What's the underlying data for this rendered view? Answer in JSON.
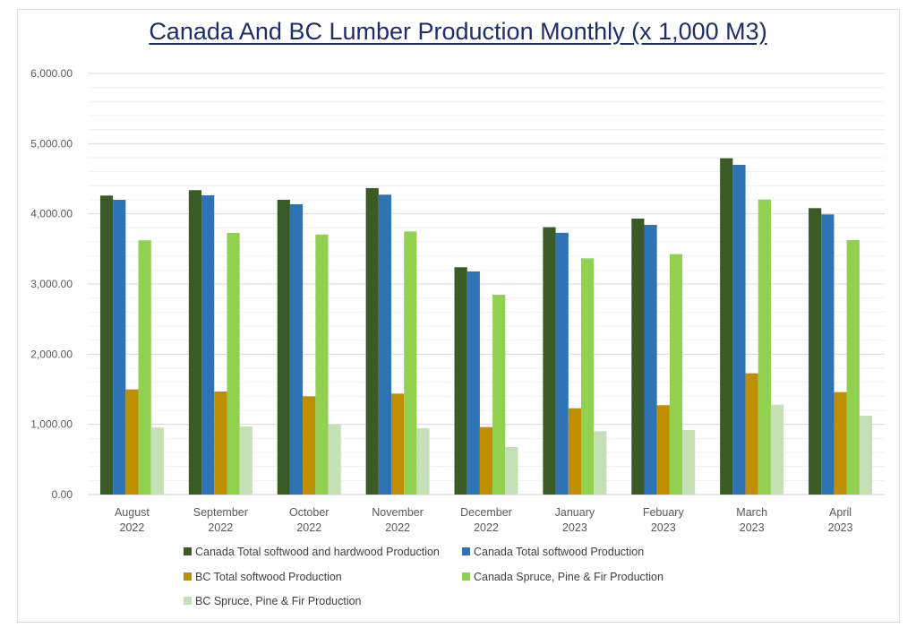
{
  "chart_data": {
    "type": "bar",
    "title": "Canada And BC Lumber Production Monthly (x 1,000 M3)",
    "xlabel": "",
    "ylabel": "",
    "ylim": [
      0,
      6000
    ],
    "y_ticks": [
      0,
      1000,
      2000,
      3000,
      4000,
      5000,
      6000
    ],
    "y_tick_labels": [
      "0.00",
      "1,000.00",
      "2,000.00",
      "3,000.00",
      "4,000.00",
      "5,000.00",
      "6,000.00"
    ],
    "minor_gridline_step": 200,
    "grid": true,
    "legend_position": "bottom",
    "categories": [
      [
        "August",
        "2022"
      ],
      [
        "September",
        "2022"
      ],
      [
        "October",
        "2022"
      ],
      [
        "November",
        "2022"
      ],
      [
        "December",
        "2022"
      ],
      [
        "January",
        "2023"
      ],
      [
        "Febuary",
        "2023"
      ],
      [
        "March",
        "2023"
      ],
      [
        "April",
        "2023"
      ]
    ],
    "series": [
      {
        "name": "Canada Total softwood and hardwood Production",
        "color": "#3a5a26",
        "values": [
          4260,
          4337,
          4200,
          4366,
          3239,
          3810,
          3932,
          4792,
          4081
        ]
      },
      {
        "name": "Canada Total softwood Production",
        "color": "#2e74b5",
        "values": [
          4200,
          4264,
          4136,
          4273,
          3179,
          3730,
          3843,
          4698,
          3992
        ]
      },
      {
        "name": "BC Total softwood Production",
        "color": "#bf8f00",
        "values": [
          1498,
          1468,
          1400,
          1438,
          962,
          1230,
          1273,
          1728,
          1460
        ]
      },
      {
        "name": "Canada Spruce, Pine & Fir Production",
        "color": "#92d050",
        "values": [
          3622,
          3728,
          3706,
          3749,
          2847,
          3366,
          3426,
          4204,
          3626
        ]
      },
      {
        "name": "BC Spruce, Pine & Fir Production",
        "color": "#c5e0b4",
        "values": [
          954,
          970,
          1000,
          945,
          677,
          902,
          919,
          1281,
          1124
        ]
      }
    ]
  }
}
